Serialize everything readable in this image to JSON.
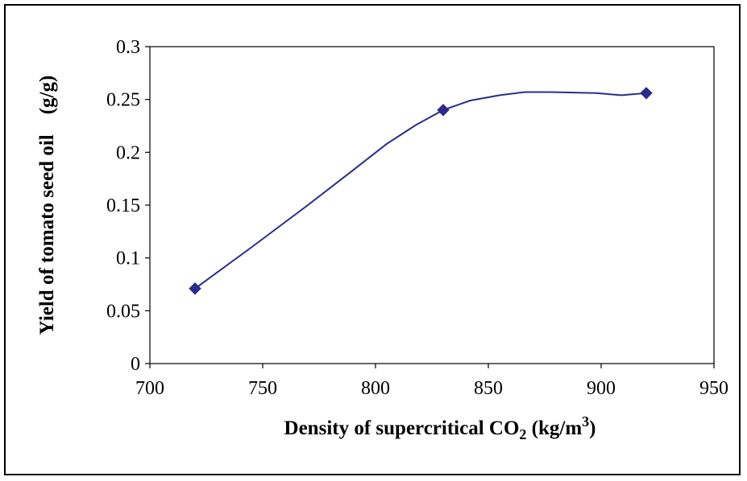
{
  "chart_data": {
    "type": "line",
    "title": "",
    "xlabel": {
      "prefix": "Density of supercritical CO",
      "sub": "2",
      "mid": " (kg/m",
      "sup": "3",
      "suffix": ")"
    },
    "ylabel": "Yield of tomato seed oil    (g/g)",
    "xlim": [
      700,
      950
    ],
    "ylim": [
      0,
      0.3
    ],
    "xticks": [
      "700",
      "750",
      "800",
      "850",
      "900",
      "950"
    ],
    "yticks": [
      "0",
      "0.05",
      "0.1",
      "0.15",
      "0.2",
      "0.25",
      "0.3"
    ],
    "grid": false,
    "legend": "none",
    "series": [
      {
        "color": "#2b2b8c",
        "marker": "diamond",
        "points": [
          {
            "x": 720,
            "y": 0.071
          },
          {
            "x": 830,
            "y": 0.24
          },
          {
            "x": 920,
            "y": 0.256
          }
        ],
        "curve": [
          [
            720,
            0.071
          ],
          [
            745,
            0.11
          ],
          [
            770,
            0.15
          ],
          [
            790,
            0.183
          ],
          [
            805,
            0.208
          ],
          [
            818,
            0.226
          ],
          [
            830,
            0.24
          ],
          [
            842,
            0.249
          ],
          [
            855,
            0.254
          ],
          [
            866,
            0.257
          ],
          [
            878,
            0.257
          ],
          [
            898,
            0.256
          ],
          [
            909,
            0.254
          ],
          [
            920,
            0.256
          ]
        ]
      }
    ]
  }
}
